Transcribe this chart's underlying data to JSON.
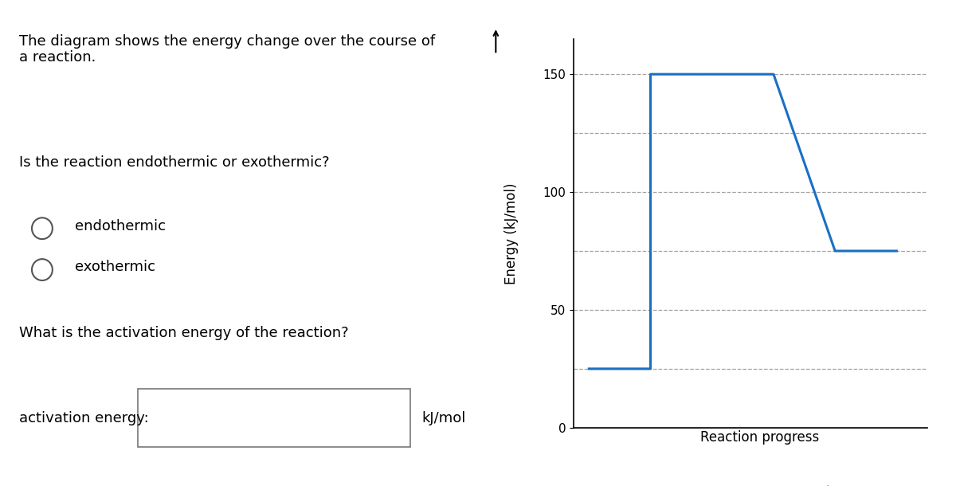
{
  "line_x": [
    0,
    2,
    2,
    4,
    6,
    8,
    10
  ],
  "line_y": [
    25,
    25,
    150,
    150,
    150,
    75,
    75
  ],
  "line_color": "#1a6fc4",
  "line_width": 2.2,
  "ylim": [
    0,
    165
  ],
  "xlim": [
    -0.5,
    11
  ],
  "yticks": [
    0,
    50,
    100,
    150
  ],
  "ylabel": "Energy (kJ/mol)",
  "xlabel": "Reaction progress",
  "grid_color": "#999999",
  "grid_style": "--",
  "grid_alpha": 0.9,
  "extra_gridlines": [
    25,
    75,
    125
  ],
  "bg_color": "#ffffff",
  "title_text": "The diagram shows the energy change over the course of\na reaction.",
  "question1": "Is the reaction endothermic or exothermic?",
  "option1": "endothermic",
  "option2": "exothermic",
  "question2": "What is the activation energy of the reaction?",
  "label_activ": "activation energy:",
  "label_unit": "kJ/mol",
  "text_color": "#000000",
  "text_fontsize": 13,
  "axis_label_fontsize": 12,
  "tick_fontsize": 11
}
